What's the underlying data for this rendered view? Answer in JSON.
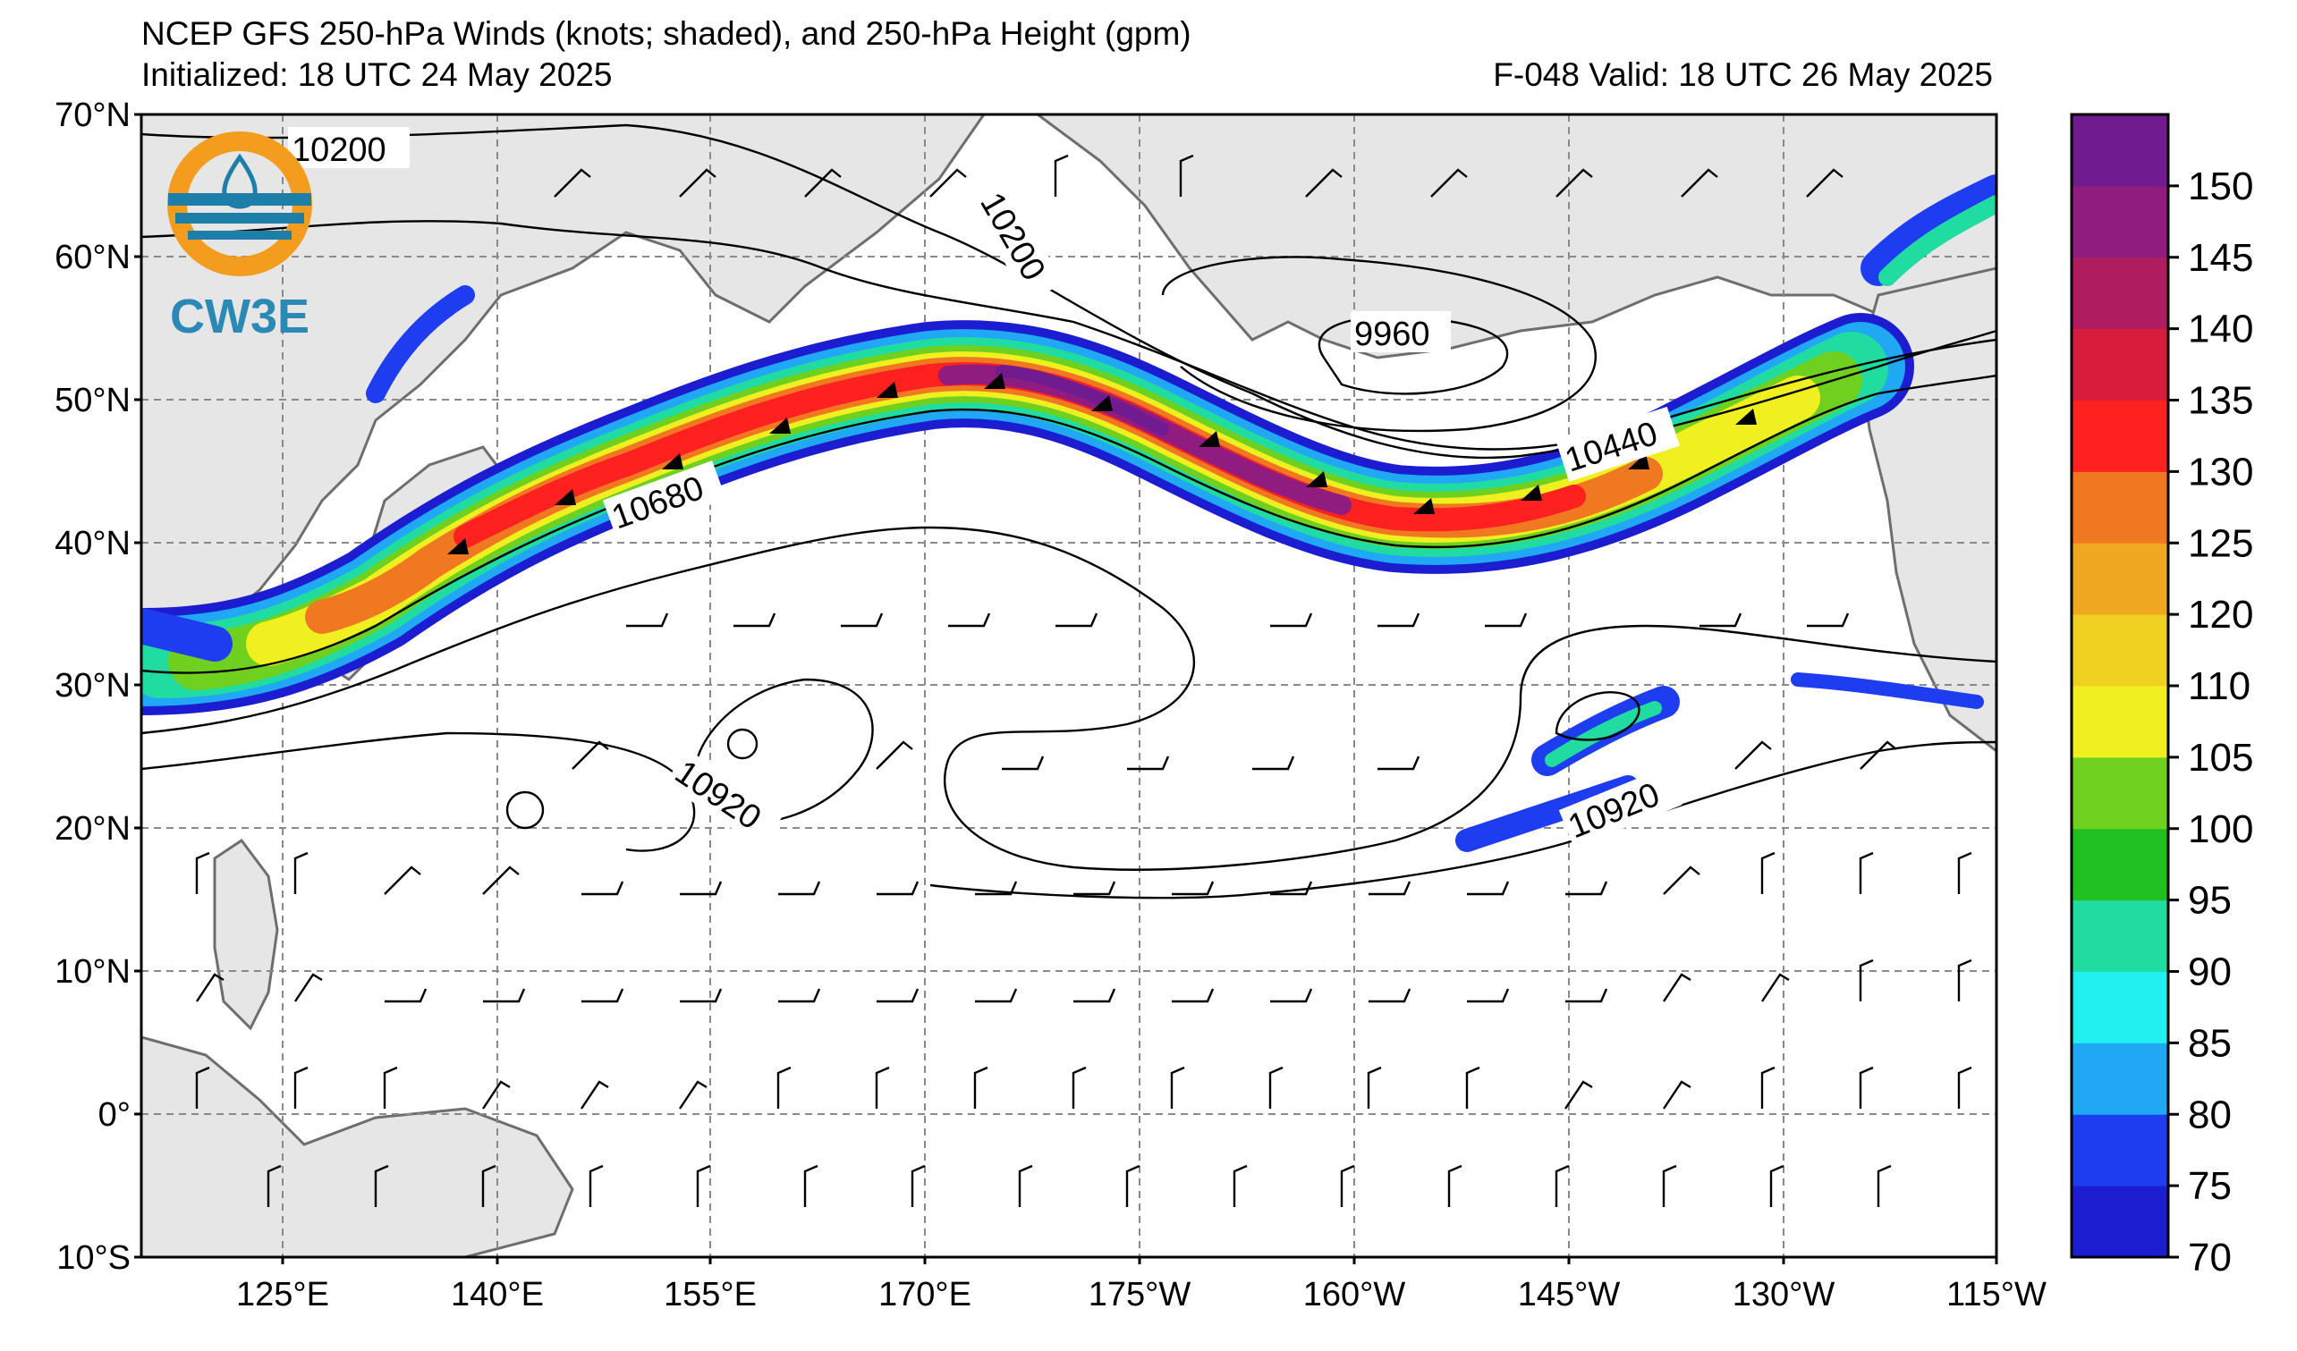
{
  "header": {
    "title": "NCEP GFS 250-hPa Winds (knots; shaded), and 250-hPa Height (gpm)",
    "initialized": "Initialized: 18 UTC 24 May 2025",
    "valid": "F-048  Valid: 18 UTC 26 May 2025"
  },
  "logo": {
    "text": "CW3E",
    "icon": "cw3e-water-drop-logo"
  },
  "axes": {
    "lat_labels": [
      "70°N",
      "60°N",
      "50°N",
      "40°N",
      "30°N",
      "20°N",
      "10°N",
      "0°",
      "10°S"
    ],
    "lon_labels": [
      "125°E",
      "140°E",
      "155°E",
      "170°E",
      "175°W",
      "160°W",
      "145°W",
      "130°W",
      "115°W"
    ]
  },
  "colorbar": {
    "ticks": [
      "70",
      "75",
      "80",
      "85",
      "90",
      "95",
      "100",
      "105",
      "110",
      "120",
      "125",
      "130",
      "135",
      "140",
      "145",
      "150"
    ],
    "colors": [
      "#1c1cd0",
      "#1f3df0",
      "#20a8f5",
      "#20f0f0",
      "#20dca0",
      "#20c020",
      "#70d020",
      "#f0f020",
      "#f0d020",
      "#f0a820",
      "#f07820",
      "#ff2020",
      "#d81c3c",
      "#b01c60",
      "#901c80",
      "#701c90"
    ]
  },
  "contour_labels": [
    {
      "text": "10200"
    },
    {
      "text": "10200"
    },
    {
      "text": "9960"
    },
    {
      "text": "10440"
    },
    {
      "text": "10680"
    },
    {
      "text": "10920"
    },
    {
      "text": "10920"
    }
  ]
}
